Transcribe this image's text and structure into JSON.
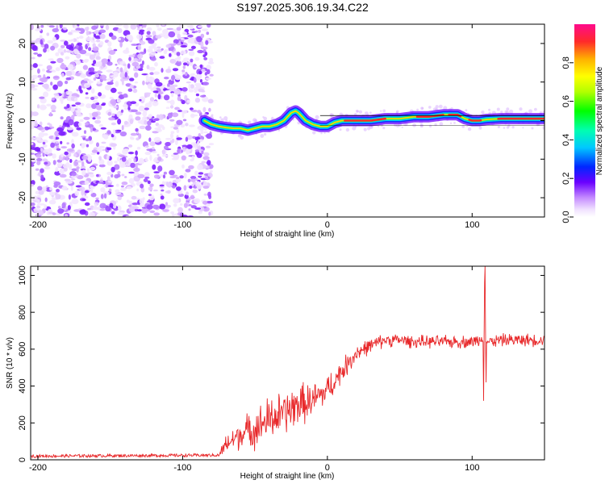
{
  "title": "S197.2025.306.19.34.C22",
  "chart_data": [
    {
      "type": "heatmap",
      "name": "spectrogram",
      "xlabel": "Height of straight line (km)",
      "ylabel": "Frequency (Hz)",
      "xlim": [
        -205,
        150
      ],
      "ylim": [
        -25,
        25
      ],
      "xticks": [
        -200,
        -100,
        0,
        100
      ],
      "xtick_labels": [
        "-200",
        "-100",
        "0",
        "100"
      ],
      "yticks": [
        20,
        10,
        0,
        -10,
        -20
      ],
      "ytick_labels": [
        "20",
        "10",
        "0",
        "-10",
        "-20"
      ],
      "noise_region_x": [
        -205,
        -80
      ],
      "ridge": {
        "x": [
          -85,
          -80,
          -75,
          -70,
          -65,
          -60,
          -55,
          -50,
          -45,
          -40,
          -35,
          -30,
          -25,
          -22,
          -20,
          -15,
          -10,
          -5,
          0,
          5,
          10,
          20,
          30,
          40,
          50,
          60,
          70,
          80,
          85,
          90,
          95,
          100,
          105,
          110,
          120,
          130,
          140,
          150
        ],
        "freq": [
          0,
          -1,
          -1.5,
          -1.8,
          -2,
          -2,
          -2.5,
          -2,
          -1.5,
          -1.5,
          -1,
          0,
          2,
          2.5,
          2,
          0,
          -1,
          -1.5,
          -1.5,
          -0.5,
          0,
          0,
          0,
          0.5,
          0.5,
          1,
          1,
          1.5,
          1.5,
          1.5,
          0.5,
          0,
          0,
          0.3,
          0.5,
          0.5,
          0.5,
          0.5
        ]
      },
      "colorbar": {
        "label": "Normalized spectral amplitude",
        "ticks": [
          0.0,
          0.2,
          0.4,
          0.6,
          0.8
        ],
        "tick_labels": [
          "0.0",
          "0.2",
          "0.4",
          "0.6",
          "0.8"
        ],
        "range": [
          0,
          1
        ]
      }
    },
    {
      "type": "line",
      "name": "snr",
      "xlabel": "Height of straight line (km)",
      "ylabel": "SNR (10 * v/v)",
      "xlim": [
        -205,
        150
      ],
      "ylim": [
        0,
        1050
      ],
      "xticks": [
        -200,
        -100,
        0,
        100
      ],
      "xtick_labels": [
        "-200",
        "-100",
        "0",
        "100"
      ],
      "yticks": [
        0,
        200,
        400,
        600,
        800,
        1000
      ],
      "ytick_labels": [
        "0",
        "200",
        "400",
        "600",
        "800",
        "1000"
      ],
      "series": [
        {
          "name": "SNR",
          "color": "#e8282a",
          "trend_x": [
            -205,
            -75,
            -70,
            -60,
            -50,
            -40,
            -30,
            -20,
            -10,
            0,
            10,
            20,
            30,
            40,
            50,
            60,
            100,
            105,
            108,
            110,
            112,
            120,
            150
          ],
          "trend_y": [
            20,
            25,
            80,
            140,
            170,
            220,
            250,
            300,
            320,
            380,
            480,
            580,
            620,
            650,
            650,
            640,
            640,
            650,
            680,
            640,
            640,
            650,
            650
          ],
          "noise_x": [
            -205,
            -75,
            -70,
            -60,
            -40,
            -20,
            0,
            10,
            30,
            50,
            100,
            150
          ],
          "noise_amp": [
            8,
            8,
            50,
            70,
            110,
            100,
            70,
            55,
            35,
            30,
            30,
            30
          ],
          "spikes": [
            {
              "x": 108,
              "y": 320
            },
            {
              "x": 108.5,
              "y": 960
            },
            {
              "x": 109,
              "y": 1050
            },
            {
              "x": 109.5,
              "y": 420
            }
          ]
        }
      ]
    }
  ],
  "colors": {
    "noise_purple": "#8a2be2",
    "snr_red": "#e8282a",
    "ridge_line": "#000000"
  }
}
